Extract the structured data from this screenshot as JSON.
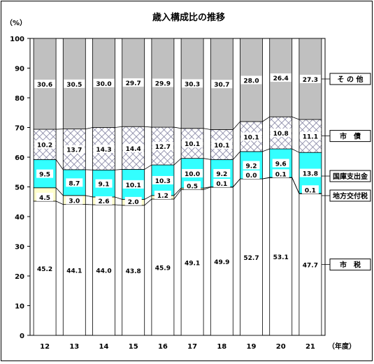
{
  "chart_data": {
    "type": "bar",
    "stacked": true,
    "title": "歳入構成比の推移",
    "y_unit_label": "（%）",
    "x_unit_label": "（年度）",
    "ylim": [
      0,
      100
    ],
    "yticks": [
      0,
      10,
      20,
      30,
      40,
      50,
      60,
      70,
      80,
      90,
      100
    ],
    "grid": false,
    "legend_position": "right",
    "categories": [
      "12",
      "13",
      "14",
      "15",
      "16",
      "17",
      "18",
      "19",
      "20",
      "21"
    ],
    "series": [
      {
        "name": "市　税",
        "pattern": "white",
        "values": [
          45.2,
          44.1,
          44.0,
          43.8,
          45.9,
          49.1,
          49.9,
          52.7,
          53.1,
          47.7
        ],
        "labels": [
          "45.2",
          "44.1",
          "44.0",
          "43.8",
          "45.9",
          "49.1",
          "49.9",
          "52.7",
          "53.1",
          "47.7"
        ]
      },
      {
        "name": "地方交付税",
        "pattern": "cream",
        "values": [
          4.5,
          3.0,
          2.6,
          2.0,
          1.2,
          0.5,
          0.1,
          0.0,
          0.1,
          0.1
        ],
        "labels": [
          "4.5",
          "3.0",
          "2.6",
          "2.0",
          "1.2",
          "0.5",
          "0.1",
          "0.0",
          "0.1",
          "0.1"
        ]
      },
      {
        "name": "国庫支出金",
        "pattern": "cyan",
        "values": [
          9.5,
          8.7,
          9.1,
          10.1,
          10.3,
          10.0,
          9.2,
          9.2,
          9.6,
          13.8
        ],
        "labels": [
          "9.5",
          "8.7",
          "9.1",
          "10.1",
          "10.3",
          "10.0",
          "9.2",
          "9.2",
          "9.6",
          "13.8"
        ]
      },
      {
        "name": "市　債",
        "pattern": "lattice",
        "values": [
          10.2,
          13.7,
          14.3,
          14.4,
          12.7,
          10.1,
          10.1,
          10.1,
          10.8,
          11.1
        ],
        "labels": [
          "10.2",
          "13.7",
          "14.3",
          "14.4",
          "12.7",
          "10.1",
          "10.1",
          "10.1",
          "10.8",
          "11.1"
        ]
      },
      {
        "name": "そ の 他",
        "pattern": "gray",
        "values": [
          30.6,
          30.5,
          30.0,
          29.7,
          29.9,
          30.3,
          30.7,
          28.0,
          26.4,
          27.3
        ],
        "labels": [
          "30.6",
          "30.5",
          "30.0",
          "29.7",
          "29.9",
          "30.3",
          "30.7",
          "28.0",
          "26.4",
          "27.3"
        ]
      }
    ],
    "colors": {
      "white": "#ffffff",
      "cream": "#ffffcc",
      "cyan": "#33ffff",
      "lattice_bg": "#ffffff",
      "lattice_line": "#8080a0",
      "gray": "#c0c0c0",
      "outline": "#000000"
    }
  }
}
